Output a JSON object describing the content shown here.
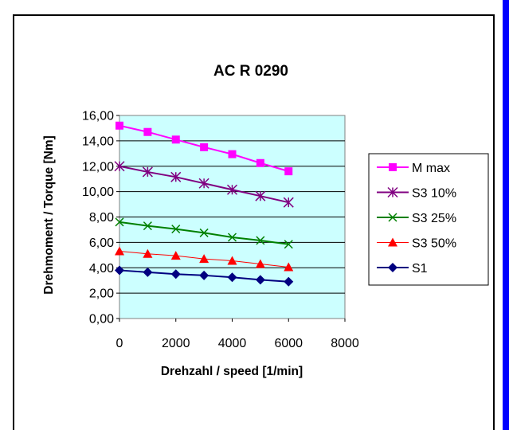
{
  "chart_data": {
    "type": "line",
    "title": "AC R 0290",
    "xlabel": "Drehzahl / speed [1/min]",
    "ylabel": "Drehmoment / Torque [Nm]",
    "xlim": [
      0,
      8000
    ],
    "ylim": [
      0,
      16
    ],
    "x_ticks": [
      "0",
      "2000",
      "4000",
      "6000",
      "8000"
    ],
    "y_ticks": [
      "0,00",
      "2,00",
      "4,00",
      "6,00",
      "8,00",
      "10,00",
      "12,00",
      "14,00",
      "16,00"
    ],
    "grid": "horizontal",
    "plot_background": "#ccffff",
    "legend_position": "right",
    "x": [
      0,
      1000,
      2000,
      3000,
      4000,
      5000,
      6000
    ],
    "series": [
      {
        "name": "M max",
        "color": "#ff00ff",
        "marker": "square",
        "values": [
          15.2,
          14.7,
          14.1,
          13.5,
          12.95,
          12.25,
          11.6
        ]
      },
      {
        "name": "S3 10%",
        "color": "#800080",
        "marker": "star",
        "values": [
          12.0,
          11.55,
          11.15,
          10.65,
          10.15,
          9.65,
          9.15
        ]
      },
      {
        "name": "S3 25%",
        "color": "#008000",
        "marker": "x",
        "values": [
          7.6,
          7.3,
          7.05,
          6.75,
          6.4,
          6.15,
          5.85
        ]
      },
      {
        "name": "S3 50%",
        "color": "#ff0000",
        "marker": "triangle",
        "values": [
          5.3,
          5.1,
          4.95,
          4.7,
          4.55,
          4.3,
          4.05
        ]
      },
      {
        "name": "S1",
        "color": "#000080",
        "marker": "diamond",
        "values": [
          3.8,
          3.65,
          3.5,
          3.4,
          3.25,
          3.05,
          2.9
        ]
      }
    ]
  }
}
